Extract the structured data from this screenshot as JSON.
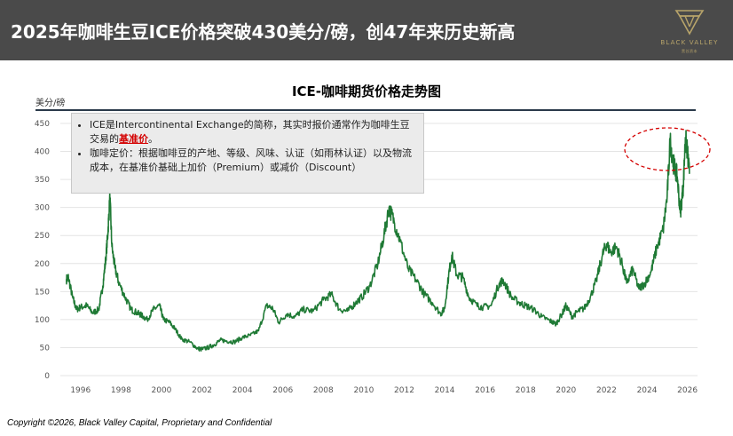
{
  "header": {
    "title": "2025年咖啡生豆ICE价格突破430美分/磅，创47年来历史新高",
    "logo_name": "BLACK VALLEY",
    "logo_sub": "黑谷资本"
  },
  "note": {
    "item1_prefix": "ICE是Intercontinental Exchange的简称，其实时报价通常作为咖啡生豆交易的",
    "item1_highlight": "基准价",
    "item1_suffix": "。",
    "item2": "咖啡定价：根据咖啡豆的产地、等级、风味、认证（如雨林认证）以及物流成本，在基准价基础上加价（Premium）或减价（Discount）"
  },
  "footer": {
    "copyright": "Copyright ©2026, Black Valley Capital, Proprietary and Confidential"
  },
  "colors": {
    "header_bg": "#4a4a4a",
    "line": "#1f7a35",
    "highlight": "#d40000",
    "logo_gold": "#b8a46a"
  },
  "chart_data": {
    "type": "line",
    "title": "ICE-咖啡期货价格走势图",
    "ylabel": "美分/磅",
    "xlabel": "",
    "xlim": [
      1995.0,
      2026.5
    ],
    "ylim": [
      0,
      450
    ],
    "y_ticks": [
      0,
      50,
      100,
      150,
      200,
      250,
      300,
      350,
      400,
      450
    ],
    "x_ticks": [
      "1996",
      "1998",
      "2000",
      "2002",
      "2004",
      "2006",
      "2008",
      "2010",
      "2012",
      "2014",
      "2016",
      "2018",
      "2020",
      "2022",
      "2024",
      "2026"
    ],
    "grid": "horizontal",
    "annotation": "dashed red ellipse around 2025 peak",
    "series": [
      {
        "values": [
          [
            1995.3,
            172
          ],
          [
            1995.4,
            175
          ],
          [
            1995.6,
            140
          ],
          [
            1995.8,
            118
          ],
          [
            1996.0,
            122
          ],
          [
            1996.3,
            125
          ],
          [
            1996.6,
            112
          ],
          [
            1996.9,
            118
          ],
          [
            1997.1,
            160
          ],
          [
            1997.25,
            210
          ],
          [
            1997.35,
            255
          ],
          [
            1997.45,
            318
          ],
          [
            1997.55,
            230
          ],
          [
            1997.7,
            192
          ],
          [
            1997.9,
            165
          ],
          [
            1998.2,
            140
          ],
          [
            1998.5,
            118
          ],
          [
            1998.8,
            112
          ],
          [
            1999.0,
            108
          ],
          [
            1999.3,
            100
          ],
          [
            1999.6,
            118
          ],
          [
            1999.9,
            125
          ],
          [
            2000.1,
            100
          ],
          [
            2000.4,
            95
          ],
          [
            2000.7,
            82
          ],
          [
            2001.0,
            65
          ],
          [
            2001.4,
            60
          ],
          [
            2001.8,
            48
          ],
          [
            2002.0,
            47
          ],
          [
            2002.3,
            50
          ],
          [
            2002.6,
            55
          ],
          [
            2002.9,
            63
          ],
          [
            2003.2,
            62
          ],
          [
            2003.6,
            60
          ],
          [
            2004.0,
            68
          ],
          [
            2004.4,
            72
          ],
          [
            2004.8,
            80
          ],
          [
            2005.2,
            125
          ],
          [
            2005.5,
            120
          ],
          [
            2005.8,
            95
          ],
          [
            2006.2,
            110
          ],
          [
            2006.6,
            105
          ],
          [
            2007.0,
            118
          ],
          [
            2007.5,
            115
          ],
          [
            2008.0,
            135
          ],
          [
            2008.4,
            145
          ],
          [
            2008.8,
            118
          ],
          [
            2009.2,
            115
          ],
          [
            2009.6,
            130
          ],
          [
            2009.9,
            140
          ],
          [
            2010.3,
            160
          ],
          [
            2010.7,
            200
          ],
          [
            2011.0,
            250
          ],
          [
            2011.25,
            300
          ],
          [
            2011.5,
            275
          ],
          [
            2011.8,
            240
          ],
          [
            2012.2,
            190
          ],
          [
            2012.6,
            170
          ],
          [
            2013.0,
            145
          ],
          [
            2013.4,
            130
          ],
          [
            2013.8,
            110
          ],
          [
            2014.0,
            120
          ],
          [
            2014.2,
            180
          ],
          [
            2014.35,
            215
          ],
          [
            2014.6,
            180
          ],
          [
            2014.9,
            175
          ],
          [
            2015.2,
            140
          ],
          [
            2015.6,
            125
          ],
          [
            2015.9,
            122
          ],
          [
            2016.3,
            125
          ],
          [
            2016.7,
            165
          ],
          [
            2016.9,
            170
          ],
          [
            2017.3,
            140
          ],
          [
            2017.7,
            130
          ],
          [
            2018.0,
            125
          ],
          [
            2018.4,
            118
          ],
          [
            2018.8,
            105
          ],
          [
            2019.2,
            98
          ],
          [
            2019.5,
            92
          ],
          [
            2019.8,
            110
          ],
          [
            2020.0,
            125
          ],
          [
            2020.3,
            105
          ],
          [
            2020.6,
            115
          ],
          [
            2020.9,
            120
          ],
          [
            2021.2,
            140
          ],
          [
            2021.5,
            170
          ],
          [
            2021.8,
            215
          ],
          [
            2022.0,
            235
          ],
          [
            2022.2,
            220
          ],
          [
            2022.5,
            230
          ],
          [
            2022.8,
            195
          ],
          [
            2023.0,
            165
          ],
          [
            2023.3,
            190
          ],
          [
            2023.6,
            155
          ],
          [
            2023.9,
            165
          ],
          [
            2024.2,
            185
          ],
          [
            2024.5,
            230
          ],
          [
            2024.8,
            260
          ],
          [
            2025.0,
            320
          ],
          [
            2025.15,
            420
          ],
          [
            2025.3,
            380
          ],
          [
            2025.5,
            355
          ],
          [
            2025.65,
            290
          ],
          [
            2025.8,
            340
          ],
          [
            2025.9,
            425
          ],
          [
            2026.0,
            400
          ],
          [
            2026.1,
            360
          ]
        ]
      }
    ]
  }
}
